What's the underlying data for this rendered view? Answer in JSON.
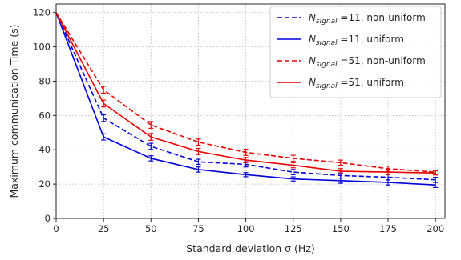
{
  "chart_data": {
    "type": "line",
    "xlabel": "Standard deviation σ (Hz)",
    "ylabel": "Maximum communication Time (s)",
    "x": [
      0,
      25,
      50,
      75,
      100,
      125,
      150,
      175,
      200
    ],
    "xticks": [
      0,
      25,
      50,
      75,
      100,
      125,
      150,
      175,
      200
    ],
    "yticks": [
      0,
      20,
      40,
      60,
      80,
      100,
      120
    ],
    "xlim": [
      0,
      205
    ],
    "ylim": [
      0,
      125
    ],
    "grid": true,
    "legend_position": "top-right",
    "series": [
      {
        "name": "N_signal =11, non-uniform",
        "legend_main": "N",
        "legend_sub": "signal",
        "legend_rest": " =11, non-uniform",
        "color": "#0000dd",
        "style": "dashed",
        "values": [
          120,
          58.5,
          42,
          33,
          31.5,
          27,
          25,
          24,
          22.5
        ],
        "errors": [
          0,
          2,
          1.8,
          1.5,
          1.5,
          1.5,
          1.5,
          1.5,
          1.5
        ]
      },
      {
        "name": "N_signal =11, uniform",
        "legend_main": "N",
        "legend_sub": "signal",
        "legend_rest": " =11, uniform",
        "color": "#0000dd",
        "style": "solid",
        "values": [
          120,
          47.5,
          35,
          28.5,
          25.5,
          23,
          22,
          21,
          19.5
        ],
        "errors": [
          0,
          1.8,
          1.5,
          1.5,
          1.2,
          1.2,
          1.5,
          1.5,
          1.5
        ]
      },
      {
        "name": "N_signal =51, non-uniform",
        "legend_main": "N",
        "legend_sub": "signal",
        "legend_rest": " =51, non-uniform",
        "color": "#ee0000",
        "style": "dashed",
        "values": [
          120,
          75,
          54.5,
          44.5,
          38.5,
          35,
          32.5,
          29,
          27
        ],
        "errors": [
          0,
          2,
          2,
          1.8,
          1.8,
          1.8,
          1.5,
          1.5,
          1.2
        ]
      },
      {
        "name": "N_signal =51, uniform",
        "legend_main": "N",
        "legend_sub": "signal",
        "legend_rest": " =51, uniform",
        "color": "#ee0000",
        "style": "solid",
        "values": [
          120,
          67,
          47.5,
          39,
          34,
          31,
          27.5,
          27,
          26.5
        ],
        "errors": [
          0,
          2,
          2,
          1.8,
          1.5,
          1.5,
          1.5,
          1.5,
          1.2
        ]
      }
    ]
  }
}
